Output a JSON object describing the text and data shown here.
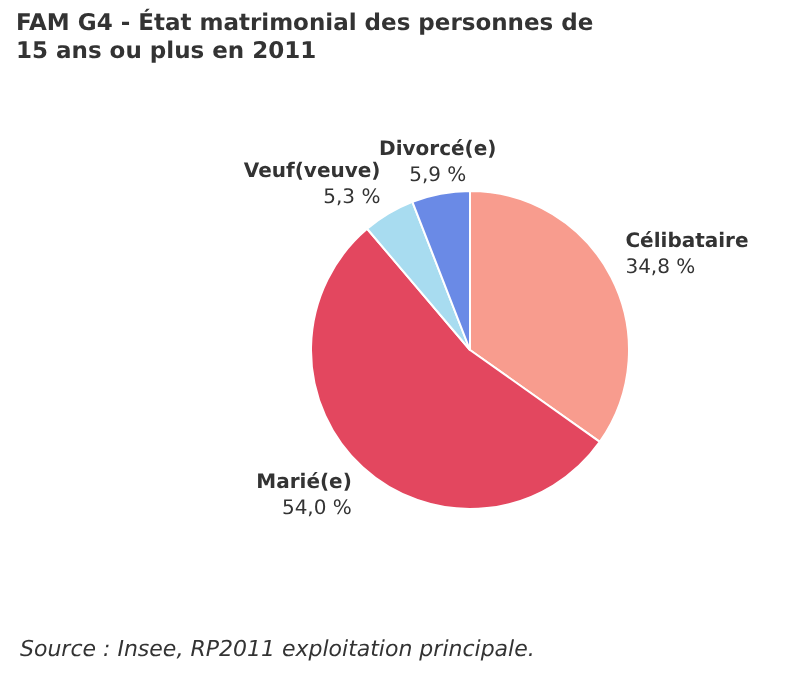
{
  "chart_data": {
    "type": "pie",
    "title": "FAM G4 - État matrimonial des personnes de 15 ans ou plus en 2011",
    "categories": [
      "Célibataire",
      "Marié(e)",
      "Veuf(veuve)",
      "Divorcé(e)"
    ],
    "values": [
      34.8,
      54.0,
      5.3,
      5.9
    ],
    "value_labels": [
      "34,8 %",
      "54,0 %",
      "5,3 %",
      "5,9 %"
    ],
    "colors": [
      "#f89c8e",
      "#e3475f",
      "#a8dcf0",
      "#6a8ae6"
    ],
    "legend": false,
    "annotations": [
      "Source : Insee, RP2011 exploitation principale."
    ]
  }
}
